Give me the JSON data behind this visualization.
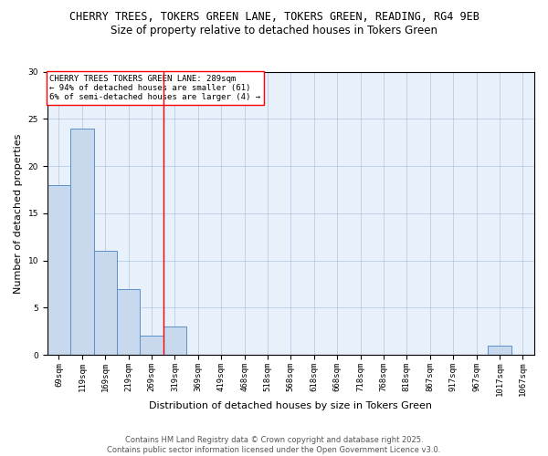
{
  "title": "CHERRY TREES, TOKERS GREEN LANE, TOKERS GREEN, READING, RG4 9EB",
  "subtitle": "Size of property relative to detached houses in Tokers Green",
  "xlabel": "Distribution of detached houses by size in Tokers Green",
  "ylabel": "Number of detached properties",
  "bar_labels": [
    "69sqm",
    "119sqm",
    "169sqm",
    "219sqm",
    "269sqm",
    "319sqm",
    "369sqm",
    "419sqm",
    "468sqm",
    "518sqm",
    "568sqm",
    "618sqm",
    "668sqm",
    "718sqm",
    "768sqm",
    "818sqm",
    "867sqm",
    "917sqm",
    "967sqm",
    "1017sqm",
    "1067sqm"
  ],
  "bar_values": [
    18,
    24,
    11,
    7,
    2,
    3,
    0,
    0,
    0,
    0,
    0,
    0,
    0,
    0,
    0,
    0,
    0,
    0,
    0,
    1,
    0
  ],
  "bar_color": "#c8d9ee",
  "bar_edge_color": "#5b8fc9",
  "vline_x": 4.5,
  "vline_color": "red",
  "annotation_text": "CHERRY TREES TOKERS GREEN LANE: 289sqm\n← 94% of detached houses are smaller (61)\n6% of semi-detached houses are larger (4) →",
  "annotation_box_color": "white",
  "annotation_box_edge": "red",
  "ylim": [
    0,
    30
  ],
  "yticks": [
    0,
    5,
    10,
    15,
    20,
    25,
    30
  ],
  "footer": "Contains HM Land Registry data © Crown copyright and database right 2025.\nContains public sector information licensed under the Open Government Licence v3.0.",
  "plot_bg_color": "#e8f0fb",
  "title_fontsize": 8.5,
  "subtitle_fontsize": 8.5,
  "axis_label_fontsize": 8,
  "tick_fontsize": 6.5,
  "footer_fontsize": 6,
  "annotation_fontsize": 6.5
}
